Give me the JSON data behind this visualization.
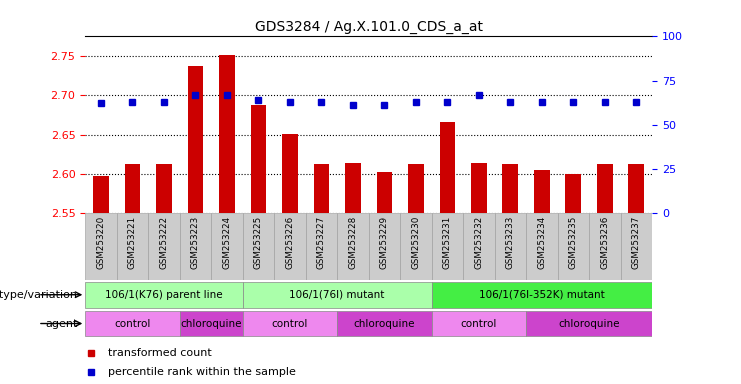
{
  "title": "GDS3284 / Ag.X.101.0_CDS_a_at",
  "samples": [
    "GSM253220",
    "GSM253221",
    "GSM253222",
    "GSM253223",
    "GSM253224",
    "GSM253225",
    "GSM253226",
    "GSM253227",
    "GSM253228",
    "GSM253229",
    "GSM253230",
    "GSM253231",
    "GSM253232",
    "GSM253233",
    "GSM253234",
    "GSM253235",
    "GSM253236",
    "GSM253237"
  ],
  "transformed_count": [
    2.597,
    2.613,
    2.612,
    2.738,
    2.752,
    2.688,
    2.651,
    2.613,
    2.614,
    2.603,
    2.613,
    2.666,
    2.614,
    2.613,
    2.605,
    2.6,
    2.613,
    2.613
  ],
  "percentile_rank": [
    2.69,
    2.692,
    2.692,
    2.7,
    2.7,
    2.694,
    2.692,
    2.692,
    2.688,
    2.688,
    2.692,
    2.692,
    2.7,
    2.692,
    2.692,
    2.692,
    2.692,
    2.692
  ],
  "bar_bottom": 2.55,
  "ylim_left": [
    2.55,
    2.775
  ],
  "yticks_left": [
    2.55,
    2.6,
    2.65,
    2.7,
    2.75
  ],
  "yticks_right_vals": [
    0,
    25,
    50,
    75,
    100
  ],
  "bar_color": "#CC0000",
  "dot_color": "#0000CC",
  "genotype_groups": [
    {
      "label": "106/1(K76) parent line",
      "start": 0,
      "end": 5,
      "color": "#aaffaa"
    },
    {
      "label": "106/1(76I) mutant",
      "start": 5,
      "end": 11,
      "color": "#aaffaa"
    },
    {
      "label": "106/1(76I-352K) mutant",
      "start": 11,
      "end": 18,
      "color": "#44ee44"
    }
  ],
  "agent_groups": [
    {
      "label": "control",
      "start": 0,
      "end": 3,
      "color": "#ee88ee"
    },
    {
      "label": "chloroquine",
      "start": 3,
      "end": 5,
      "color": "#cc44cc"
    },
    {
      "label": "control",
      "start": 5,
      "end": 8,
      "color": "#ee88ee"
    },
    {
      "label": "chloroquine",
      "start": 8,
      "end": 11,
      "color": "#cc44cc"
    },
    {
      "label": "control",
      "start": 11,
      "end": 14,
      "color": "#ee88ee"
    },
    {
      "label": "chloroquine",
      "start": 14,
      "end": 18,
      "color": "#cc44cc"
    }
  ],
  "genotype_label": "genotype/variation",
  "agent_label": "agent",
  "background_color": "#FFFFFF"
}
